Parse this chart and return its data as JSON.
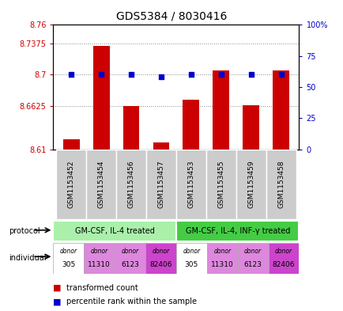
{
  "title": "GDS5384 / 8030416",
  "samples": [
    "GSM1153452",
    "GSM1153454",
    "GSM1153456",
    "GSM1153457",
    "GSM1153453",
    "GSM1153455",
    "GSM1153459",
    "GSM1153458"
  ],
  "bar_values": [
    8.622,
    8.735,
    8.662,
    8.618,
    8.67,
    8.705,
    8.663,
    8.705
  ],
  "percentile_values": [
    60,
    60,
    60,
    58,
    60,
    60,
    60,
    60
  ],
  "ymin": 8.61,
  "ymax": 8.76,
  "yticks": [
    8.61,
    8.6625,
    8.7,
    8.7375,
    8.76
  ],
  "ytick_labels": [
    "8.61",
    "8.6625",
    "8.7",
    "8.7375",
    "8.76"
  ],
  "y2min": 0,
  "y2max": 100,
  "y2ticks": [
    0,
    25,
    50,
    75,
    100
  ],
  "y2tick_labels": [
    "0",
    "25",
    "50",
    "75",
    "100%"
  ],
  "bar_color": "#cc0000",
  "percentile_color": "#0000cc",
  "protocol_groups": [
    {
      "label": "GM-CSF, IL-4 treated",
      "start": 0,
      "end": 4,
      "color": "#aaf0aa"
    },
    {
      "label": "GM-CSF, IL-4, INF-γ treated",
      "start": 4,
      "end": 8,
      "color": "#44cc44"
    }
  ],
  "individuals": [
    {
      "label": "donor\n305",
      "color": "#ffffff"
    },
    {
      "label": "donor\n11310",
      "color": "#dd88dd"
    },
    {
      "label": "donor\n6123",
      "color": "#dd88dd"
    },
    {
      "label": "donor\n82406",
      "color": "#cc44cc"
    },
    {
      "label": "donor\n305",
      "color": "#ffffff"
    },
    {
      "label": "donor\n11310",
      "color": "#dd88dd"
    },
    {
      "label": "donor\n6123",
      "color": "#dd88dd"
    },
    {
      "label": "donor\n82406",
      "color": "#cc44cc"
    }
  ],
  "sample_bg_color": "#cccccc",
  "legend_bar_label": "transformed count",
  "legend_pct_label": "percentile rank within the sample",
  "bar_width": 0.55,
  "grid_color": "#888888",
  "bg_color": "#ffffff",
  "left_color": "#cc0000",
  "right_color": "#0000cc"
}
